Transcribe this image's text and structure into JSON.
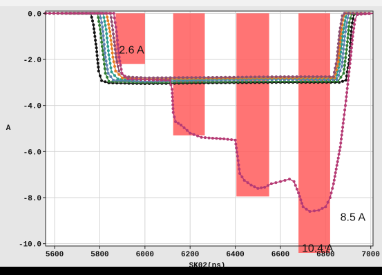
{
  "header": {
    "partial_text": ""
  },
  "chart_data": {
    "type": "line",
    "xlabel": "SK02(ns)",
    "ylabel": "A",
    "xlim": [
      5560,
      7010
    ],
    "ylim": [
      -10.1,
      0.1
    ],
    "x_ticks": [
      "5600",
      "5800",
      "6000",
      "6200",
      "6400",
      "6600",
      "6800",
      "7000"
    ],
    "y_ticks": [
      "0.0",
      "-2.0",
      "-4.0",
      "-6.0",
      "-8.0",
      "-10.0"
    ],
    "grid": true,
    "bands": [
      {
        "x0": 5870,
        "x1": 6000,
        "y_bottom": -2.2,
        "color": "#ff5c5c"
      },
      {
        "x0": 6125,
        "x1": 6265,
        "y_bottom": -5.3,
        "color": "#ff5c5c"
      },
      {
        "x0": 6405,
        "x1": 6550,
        "y_bottom": -7.95,
        "color": "#ff5c5c"
      },
      {
        "x0": 6680,
        "x1": 6820,
        "y_bottom": -10.4,
        "color": "#ff5c5c"
      }
    ],
    "annotations": [
      {
        "text": "2.6 A",
        "x": 5885,
        "y": -1.75
      },
      {
        "text": "8.5 A",
        "x": 6865,
        "y": -9.0
      },
      {
        "text": "10.4 A",
        "x": 6695,
        "y": -10.35
      }
    ],
    "series": [
      {
        "color": "#111111",
        "points": [
          [
            5560,
            0
          ],
          [
            5760,
            0
          ],
          [
            5772,
            -0.5
          ],
          [
            5785,
            -1.5
          ],
          [
            5795,
            -2.5
          ],
          [
            5808,
            -2.92
          ],
          [
            5840,
            -3.02
          ],
          [
            6000,
            -3.05
          ],
          [
            6300,
            -3.02
          ],
          [
            6600,
            -3.0
          ],
          [
            6860,
            -3.0
          ],
          [
            6890,
            -2.9
          ],
          [
            6905,
            -2.0
          ],
          [
            6915,
            -0.6
          ],
          [
            6925,
            -0.05
          ],
          [
            7010,
            0
          ]
        ]
      },
      {
        "color": "#2e7d32",
        "points": [
          [
            5560,
            0
          ],
          [
            5790,
            0
          ],
          [
            5802,
            -0.7
          ],
          [
            5815,
            -1.8
          ],
          [
            5825,
            -2.6
          ],
          [
            5840,
            -2.95
          ],
          [
            6000,
            -3.0
          ],
          [
            6300,
            -2.97
          ],
          [
            6600,
            -2.95
          ],
          [
            6855,
            -2.95
          ],
          [
            6880,
            -2.6
          ],
          [
            6895,
            -1.4
          ],
          [
            6905,
            -0.4
          ],
          [
            6915,
            -0.03
          ],
          [
            7010,
            0
          ]
        ]
      },
      {
        "color": "#5b7fb0",
        "points": [
          [
            5560,
            0
          ],
          [
            5800,
            0
          ],
          [
            5812,
            -0.6
          ],
          [
            5825,
            -1.9
          ],
          [
            5837,
            -2.6
          ],
          [
            5860,
            -2.9
          ],
          [
            6000,
            -2.95
          ],
          [
            6300,
            -2.9
          ],
          [
            6600,
            -2.88
          ],
          [
            6850,
            -2.88
          ],
          [
            6872,
            -2.3
          ],
          [
            6885,
            -1.0
          ],
          [
            6897,
            -0.2
          ],
          [
            6905,
            0
          ],
          [
            7010,
            0
          ]
        ]
      },
      {
        "color": "#2a9d8f",
        "points": [
          [
            5560,
            0
          ],
          [
            5815,
            0
          ],
          [
            5828,
            -0.7
          ],
          [
            5840,
            -1.8
          ],
          [
            5852,
            -2.55
          ],
          [
            5880,
            -2.85
          ],
          [
            6000,
            -2.88
          ],
          [
            6300,
            -2.85
          ],
          [
            6600,
            -2.82
          ],
          [
            6845,
            -2.82
          ],
          [
            6862,
            -2.2
          ],
          [
            6875,
            -1.0
          ],
          [
            6888,
            -0.15
          ],
          [
            6900,
            0
          ],
          [
            7010,
            0
          ]
        ]
      },
      {
        "color": "#e67e22",
        "points": [
          [
            5560,
            0
          ],
          [
            5830,
            0
          ],
          [
            5845,
            -0.8
          ],
          [
            5858,
            -1.9
          ],
          [
            5870,
            -2.5
          ],
          [
            5900,
            -2.8
          ],
          [
            6000,
            -2.85
          ],
          [
            6300,
            -2.82
          ],
          [
            6600,
            -2.8
          ],
          [
            6840,
            -2.8
          ],
          [
            6856,
            -2.1
          ],
          [
            6868,
            -0.9
          ],
          [
            6880,
            -0.1
          ],
          [
            6890,
            0
          ],
          [
            7010,
            0
          ]
        ]
      },
      {
        "color": "#8d4e6f",
        "points": [
          [
            5560,
            0
          ],
          [
            5848,
            0
          ],
          [
            5860,
            -0.9
          ],
          [
            5872,
            -1.9
          ],
          [
            5885,
            -2.5
          ],
          [
            5910,
            -2.75
          ],
          [
            6000,
            -2.8
          ],
          [
            6300,
            -2.78
          ],
          [
            6600,
            -2.75
          ],
          [
            6835,
            -2.75
          ],
          [
            6850,
            -2.0
          ],
          [
            6862,
            -0.8
          ],
          [
            6874,
            -0.1
          ],
          [
            6884,
            0
          ],
          [
            7010,
            0
          ]
        ]
      },
      {
        "color": "#b53a74",
        "points": [
          [
            5560,
            0
          ],
          [
            5862,
            0
          ],
          [
            5874,
            -0.8
          ],
          [
            5886,
            -1.9
          ],
          [
            5898,
            -2.6
          ],
          [
            5925,
            -2.85
          ],
          [
            6000,
            -2.88
          ],
          [
            6110,
            -2.9
          ],
          [
            6120,
            -3.3
          ],
          [
            6125,
            -4.3
          ],
          [
            6135,
            -4.7
          ],
          [
            6160,
            -4.85
          ],
          [
            6200,
            -5.2
          ],
          [
            6250,
            -5.38
          ],
          [
            6300,
            -5.42
          ],
          [
            6350,
            -5.45
          ],
          [
            6400,
            -5.5
          ],
          [
            6410,
            -6.2
          ],
          [
            6420,
            -6.95
          ],
          [
            6440,
            -7.25
          ],
          [
            6470,
            -7.45
          ],
          [
            6500,
            -7.6
          ],
          [
            6530,
            -7.55
          ],
          [
            6560,
            -7.4
          ],
          [
            6600,
            -7.3
          ],
          [
            6640,
            -7.2
          ],
          [
            6660,
            -7.3
          ],
          [
            6680,
            -7.8
          ],
          [
            6700,
            -8.4
          ],
          [
            6730,
            -8.6
          ],
          [
            6770,
            -8.55
          ],
          [
            6800,
            -8.4
          ],
          [
            6820,
            -8.0
          ],
          [
            6835,
            -7.4
          ],
          [
            6850,
            -6.6
          ],
          [
            6865,
            -5.8
          ],
          [
            6880,
            -4.6
          ],
          [
            6890,
            -3.8
          ],
          [
            6900,
            -2.9
          ],
          [
            6910,
            -2.0
          ],
          [
            6920,
            -1.0
          ],
          [
            6930,
            -0.3
          ],
          [
            6940,
            -0.05
          ],
          [
            7010,
            0
          ]
        ]
      }
    ]
  }
}
